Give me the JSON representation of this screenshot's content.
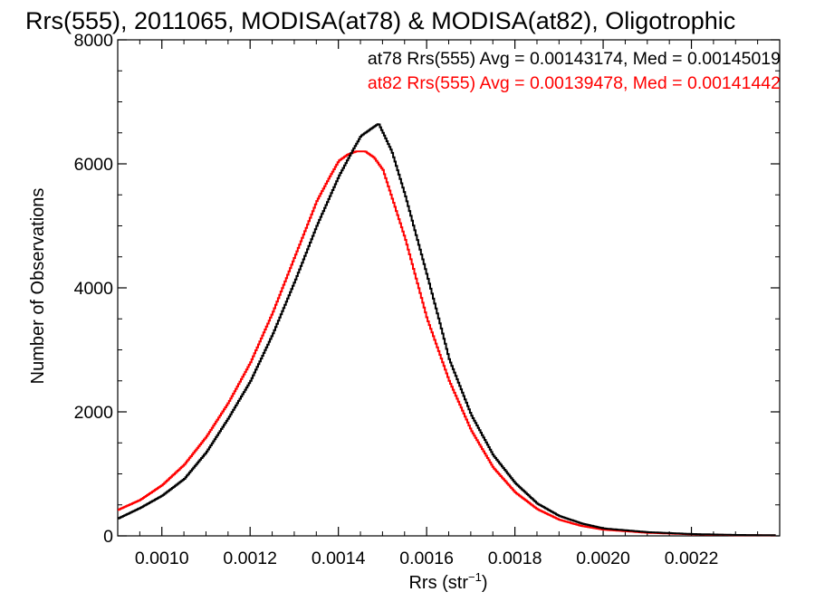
{
  "chart_data": {
    "type": "line",
    "title": "Rrs(555), 2011065, MODISA(at78) & MODISA(at82), Oligotrophic",
    "xlabel_main": "Rrs (str",
    "xlabel_sup": "−1",
    "xlabel_end": ")",
    "ylabel": "Number of Observations",
    "xlim": [
      0.0009,
      0.0024
    ],
    "ylim": [
      0,
      8000
    ],
    "x_ticks": [
      0.001,
      0.0012,
      0.0014,
      0.0016,
      0.0018,
      0.002,
      0.0022
    ],
    "x_tick_labels": [
      "0.0010",
      "0.0012",
      "0.0014",
      "0.0016",
      "0.0018",
      "0.0020",
      "0.0022"
    ],
    "y_ticks": [
      0,
      2000,
      4000,
      6000,
      8000
    ],
    "y_tick_labels": [
      "0",
      "2000",
      "4000",
      "6000",
      "8000"
    ],
    "legend_position": "top-right",
    "series": [
      {
        "name": "at78",
        "legend": "at78 Rrs(555) Avg = 0.00143174, Med = 0.00145019",
        "color": "#000000",
        "x": [
          0.0009,
          0.00095,
          0.001,
          0.00105,
          0.0011,
          0.00115,
          0.0012,
          0.00125,
          0.0013,
          0.00135,
          0.0014,
          0.00143,
          0.00145,
          0.00147,
          0.00149,
          0.0015,
          0.00152,
          0.00155,
          0.0016,
          0.00163,
          0.00165,
          0.0017,
          0.00175,
          0.0018,
          0.00185,
          0.0019,
          0.00195,
          0.002,
          0.0021,
          0.0022,
          0.0023,
          0.00239
        ],
        "y": [
          280,
          450,
          650,
          920,
          1350,
          1900,
          2500,
          3250,
          4100,
          5000,
          5800,
          6200,
          6450,
          6550,
          6650,
          6500,
          6200,
          5500,
          4200,
          3400,
          2850,
          1950,
          1300,
          850,
          520,
          320,
          200,
          120,
          60,
          30,
          15,
          10
        ]
      },
      {
        "name": "at82",
        "legend": "at82 Rrs(555) Avg = 0.00139478, Med = 0.00141442",
        "color": "#ff0000",
        "x": [
          0.0009,
          0.00095,
          0.001,
          0.00105,
          0.0011,
          0.00115,
          0.0012,
          0.00125,
          0.0013,
          0.00135,
          0.00138,
          0.0014,
          0.00142,
          0.00144,
          0.00146,
          0.00148,
          0.0015,
          0.00155,
          0.0016,
          0.00165,
          0.0017,
          0.00175,
          0.0018,
          0.00185,
          0.0019,
          0.00195,
          0.002,
          0.0021,
          0.0022,
          0.0023,
          0.00239
        ],
        "y": [
          420,
          580,
          820,
          1150,
          1600,
          2150,
          2800,
          3600,
          4500,
          5400,
          5800,
          6050,
          6150,
          6200,
          6200,
          6100,
          5900,
          4800,
          3500,
          2500,
          1700,
          1100,
          700,
          430,
          260,
          160,
          100,
          50,
          25,
          12,
          8
        ]
      }
    ]
  }
}
